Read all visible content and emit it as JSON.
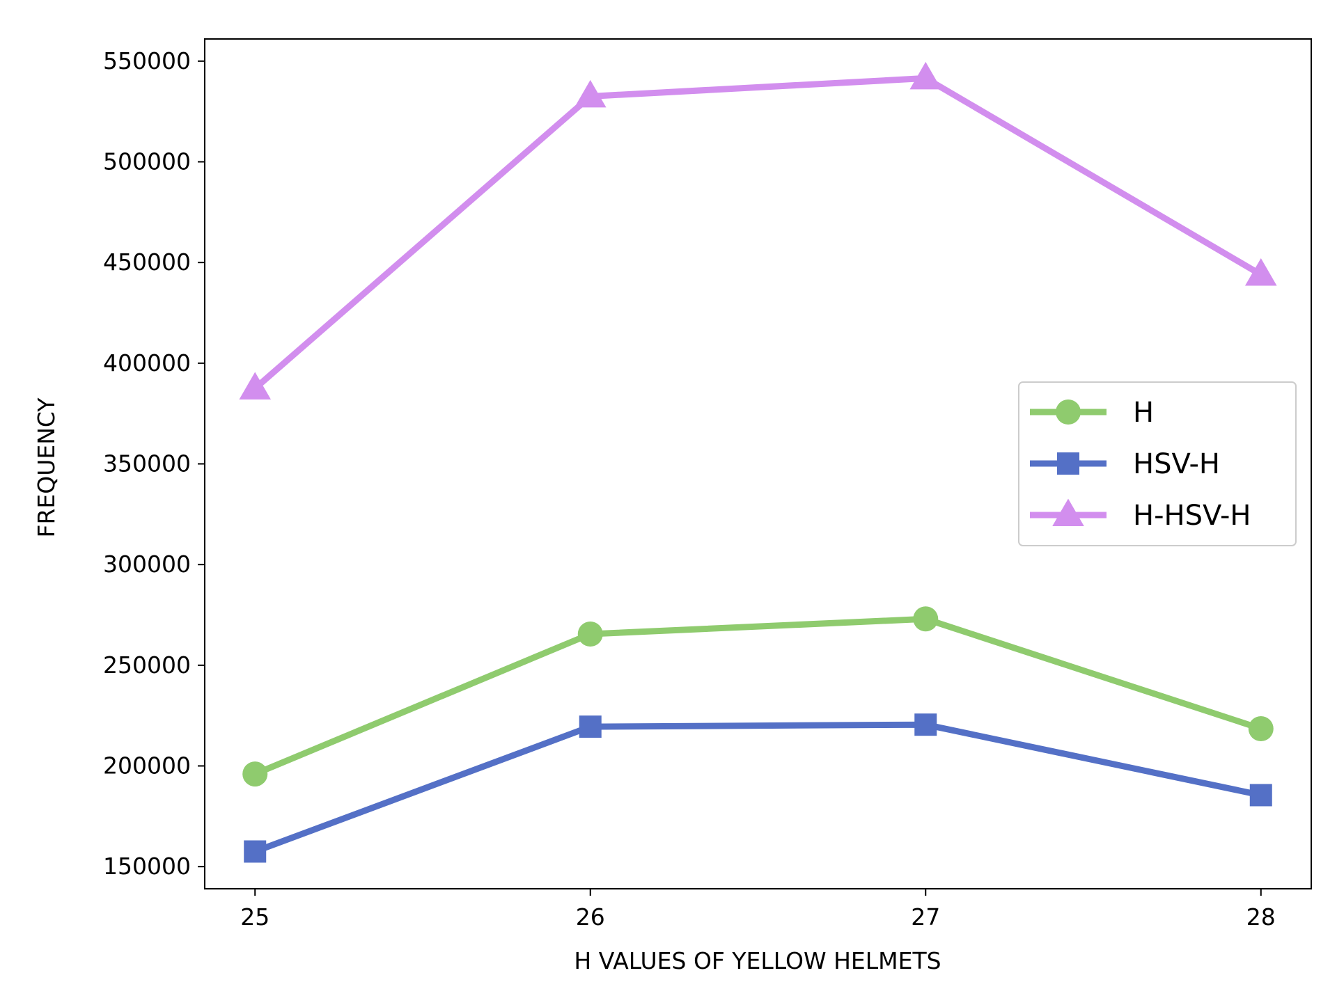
{
  "chart_data": {
    "type": "line",
    "title": "",
    "xlabel": "H VALUES OF YELLOW HELMETS",
    "ylabel": "FREQUENCY",
    "x": [
      25,
      26,
      27,
      28
    ],
    "xlim": [
      24.85,
      28.15
    ],
    "ylim": [
      139000,
      561000
    ],
    "x_ticks": [
      "25",
      "26",
      "27",
      "28"
    ],
    "y_ticks": [
      "150000",
      "200000",
      "250000",
      "300000",
      "350000",
      "400000",
      "450000",
      "500000",
      "550000"
    ],
    "y_tick_values": [
      150000,
      200000,
      250000,
      300000,
      350000,
      400000,
      450000,
      500000,
      550000
    ],
    "grid": false,
    "legend_position": "center-right",
    "series": [
      {
        "name": "H",
        "values": [
          196000,
          265500,
          273000,
          218500
        ],
        "color": "#8FCB6E",
        "marker": "circle"
      },
      {
        "name": "HSV-H",
        "values": [
          157500,
          219500,
          220500,
          185500
        ],
        "color": "#5470C6",
        "marker": "square"
      },
      {
        "name": "H-HSV-H",
        "values": [
          387500,
          532500,
          541500,
          444000
        ],
        "color": "#D28EEE",
        "marker": "triangle"
      }
    ]
  }
}
